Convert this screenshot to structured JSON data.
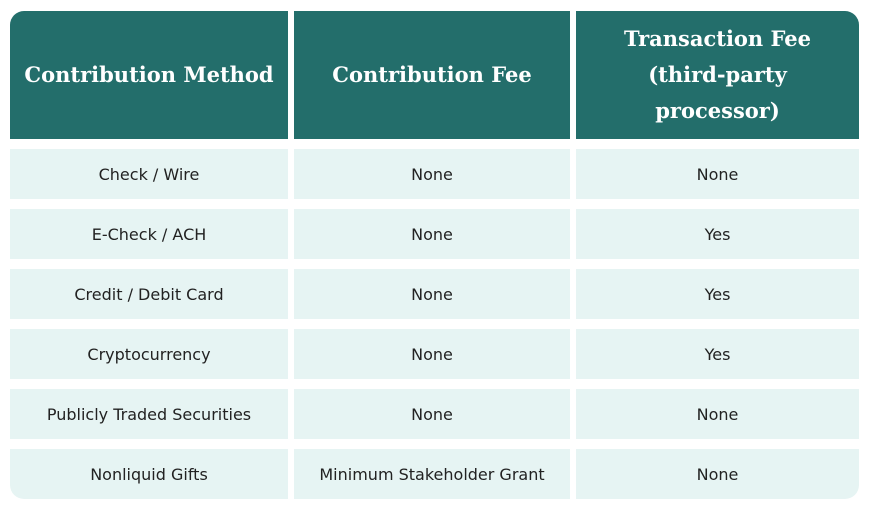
{
  "table": {
    "headers": [
      "Contribution Method",
      "Contribution Fee",
      "Transaction Fee (third-party processor)"
    ],
    "rows": [
      [
        "Check / Wire",
        "None",
        "None"
      ],
      [
        "E-Check / ACH",
        "None",
        "Yes"
      ],
      [
        "Credit / Debit Card",
        "None",
        "Yes"
      ],
      [
        "Cryptocurrency",
        "None",
        "Yes"
      ],
      [
        "Publicly Traded Securities",
        "None",
        "None"
      ],
      [
        "Nonliquid Gifts",
        "Minimum Stakeholder Grant",
        "None"
      ]
    ]
  },
  "colors": {
    "header_bg": "#236e6b",
    "row_bg": "#e6f4f3"
  }
}
